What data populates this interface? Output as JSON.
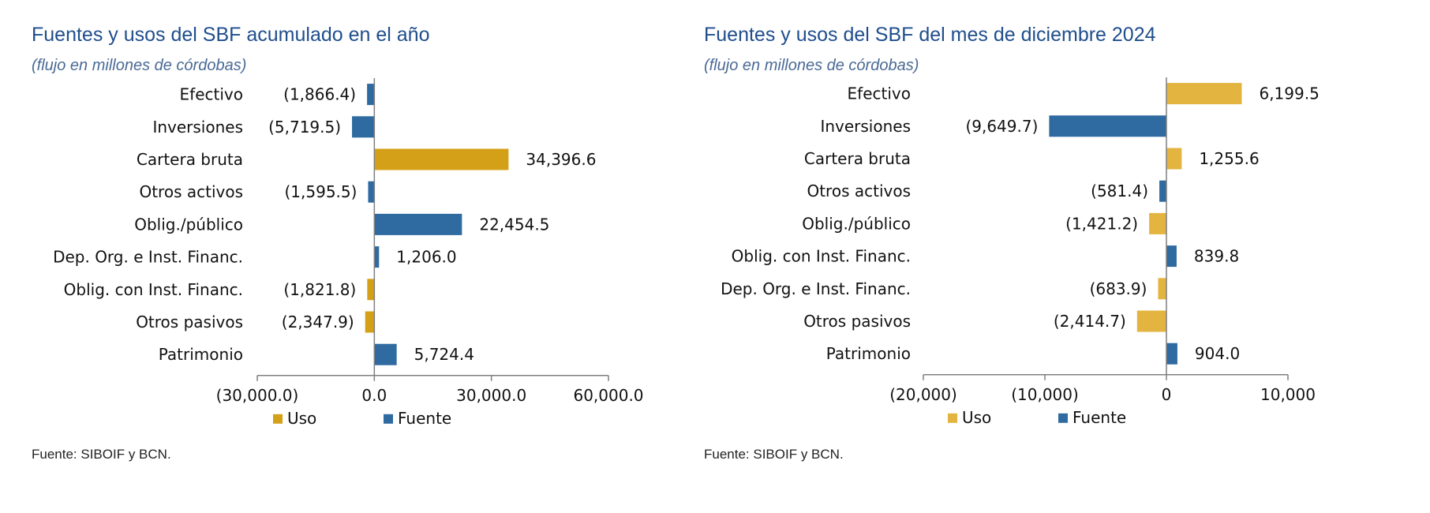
{
  "colors": {
    "uso_left": "#d4a017",
    "uso_right": "#e3b43f",
    "fuente": "#2f6aa0",
    "title": "#1f4e8c"
  },
  "chart_data": [
    {
      "type": "bar",
      "orientation": "horizontal",
      "title": "Fuentes y usos del SBF acumulado en el año",
      "subtitle": "(flujo en millones de córdobas)",
      "categories": [
        "Efectivo",
        "Inversiones",
        "Cartera bruta",
        "Otros activos",
        "Oblig./público",
        "Dep. Org. e Inst. Financ.",
        "Oblig. con Inst. Financ.",
        "Otros pasivos",
        "Patrimonio"
      ],
      "values": [
        -1866.4,
        -5719.5,
        34396.6,
        -1595.5,
        22454.5,
        1206.0,
        -1821.8,
        -2347.9,
        5724.4
      ],
      "value_labels": [
        "(1,866.4)",
        "(5,719.5)",
        "34,396.6",
        "(1,595.5)",
        "22,454.5",
        "1,206.0",
        "(1,821.8)",
        "(2,347.9)",
        "5,724.4"
      ],
      "series_type": [
        "Fuente",
        "Fuente",
        "Uso",
        "Fuente",
        "Fuente",
        "Fuente",
        "Uso",
        "Uso",
        "Fuente"
      ],
      "xlim": [
        -30000,
        60000
      ],
      "xticks": [
        -30000,
        0,
        30000,
        60000
      ],
      "xtick_labels": [
        "(30,000.0)",
        "0.0",
        "30,000.0",
        "60,000.0"
      ],
      "legend": [
        "Uso",
        "Fuente"
      ],
      "legend_position": "bottom",
      "source": "Fuente: SIBOIF y BCN."
    },
    {
      "type": "bar",
      "orientation": "horizontal",
      "title": "Fuentes y usos del SBF del mes de diciembre 2024",
      "subtitle": "(flujo en millones de córdobas)",
      "categories": [
        "Efectivo",
        "Inversiones",
        "Cartera bruta",
        "Otros activos",
        "Oblig./público",
        "Oblig. con Inst. Financ.",
        "Dep. Org. e Inst. Financ.",
        "Otros pasivos",
        "Patrimonio"
      ],
      "values": [
        6199.5,
        -9649.7,
        1255.6,
        -581.4,
        -1421.2,
        839.8,
        -683.9,
        -2414.7,
        904.0
      ],
      "value_labels": [
        "6,199.5",
        "(9,649.7)",
        "1,255.6",
        "(581.4)",
        "(1,421.2)",
        "839.8",
        "(683.9)",
        "(2,414.7)",
        "904.0"
      ],
      "series_type": [
        "Uso",
        "Fuente",
        "Uso",
        "Fuente",
        "Uso",
        "Fuente",
        "Uso",
        "Uso",
        "Fuente"
      ],
      "xlim": [
        -20000,
        10000
      ],
      "xticks": [
        -20000,
        -10000,
        0,
        10000
      ],
      "xtick_labels": [
        "(20,000)",
        "(10,000)",
        "0",
        "10,000"
      ],
      "legend": [
        "Uso",
        "Fuente"
      ],
      "legend_position": "bottom",
      "source": "Fuente: SIBOIF y BCN."
    }
  ]
}
